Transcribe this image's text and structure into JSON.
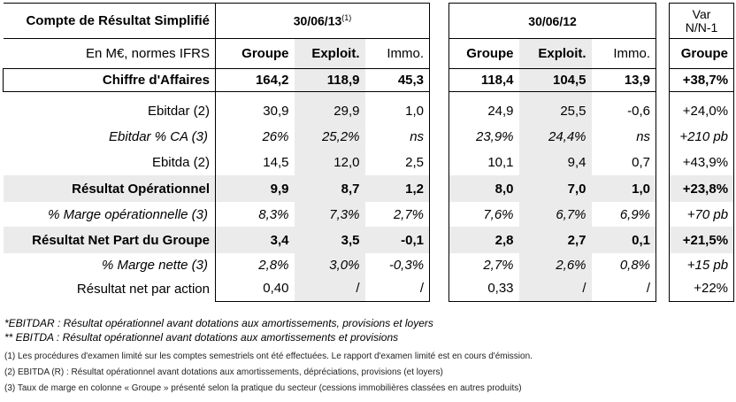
{
  "table": {
    "title": "Compte de Résultat Simplifié",
    "period_current": "30/06/13",
    "period_current_sup": "(1)",
    "period_prior": "30/06/12",
    "var_header_line1": "Var",
    "var_header_line2": "N/N-1",
    "units_label": "En M€, normes IFRS",
    "col_groupe": "Groupe",
    "col_exploit": "Exploit.",
    "col_immo": "Immo.",
    "col_var_groupe": "Groupe",
    "rows": [
      {
        "label": "Chiffre d'Affaires",
        "cur_groupe": "164,2",
        "cur_exploit": "118,9",
        "cur_immo": "45,3",
        "pri_groupe": "118,4",
        "pri_exploit": "104,5",
        "pri_immo": "13,9",
        "var": "+38,7%"
      },
      {
        "label": "Ebitdar (2)",
        "cur_groupe": "30,9",
        "cur_exploit": "29,9",
        "cur_immo": "1,0",
        "pri_groupe": "24,9",
        "pri_exploit": "25,5",
        "pri_immo": "-0,6",
        "var": "+24,0%"
      },
      {
        "label": "Ebitdar % CA (3)",
        "cur_groupe": "26%",
        "cur_exploit": "25,2%",
        "cur_immo": "ns",
        "pri_groupe": "23,9%",
        "pri_exploit": "24,4%",
        "pri_immo": "ns",
        "var": "+210 pb"
      },
      {
        "label": "Ebitda (2)",
        "cur_groupe": "14,5",
        "cur_exploit": "12,0",
        "cur_immo": "2,5",
        "pri_groupe": "10,1",
        "pri_exploit": "9,4",
        "pri_immo": "0,7",
        "var": "+43,9%"
      },
      {
        "label": "Résultat Opérationnel",
        "cur_groupe": "9,9",
        "cur_exploit": "8,7",
        "cur_immo": "1,2",
        "pri_groupe": "8,0",
        "pri_exploit": "7,0",
        "pri_immo": "1,0",
        "var": "+23,8%"
      },
      {
        "label": "% Marge opérationnelle (3)",
        "cur_groupe": "8,3%",
        "cur_exploit": "7,3%",
        "cur_immo": "2,7%",
        "pri_groupe": "7,6%",
        "pri_exploit": "6,7%",
        "pri_immo": "6,9%",
        "var": "+70 pb"
      },
      {
        "label": "Résultat Net Part du Groupe",
        "cur_groupe": "3,4",
        "cur_exploit": "3,5",
        "cur_immo": "-0,1",
        "pri_groupe": "2,8",
        "pri_exploit": "2,7",
        "pri_immo": "0,1",
        "var": "+21,5%"
      },
      {
        "label": "% Marge nette (3)",
        "cur_groupe": "2,8%",
        "cur_exploit": "3,0%",
        "cur_immo": "-0,3%",
        "pri_groupe": "2,7%",
        "pri_exploit": "2,6%",
        "pri_immo": "0,8%",
        "var": "+15 pb"
      },
      {
        "label": "Résultat net par action",
        "cur_groupe": "0,40",
        "cur_exploit": "/",
        "cur_immo": "/",
        "pri_groupe": "0,33",
        "pri_exploit": "/",
        "pri_immo": "/",
        "var": "+22%"
      }
    ]
  },
  "notes": {
    "ebitdar_def": "*EBITDAR : Résultat opérationnel avant dotations aux amortissements, provisions et loyers",
    "ebitda_def": "** EBITDA : Résultat opérationnel avant dotations aux amortissements et provisions",
    "note1": "(1) Les procédures d'examen limité sur les comptes semestriels ont été effectuées. Le rapport d'examen limité est en cours d'émission.",
    "note2": "(2)  EBITDA (R) : Résultat opérationnel avant dotations aux amortissements, dépréciations, provisions (et loyers)",
    "note3": "(3)  Taux de marge en colonne « Groupe » présenté selon la pratique du secteur (cessions immobilières classées en autres produits)"
  }
}
